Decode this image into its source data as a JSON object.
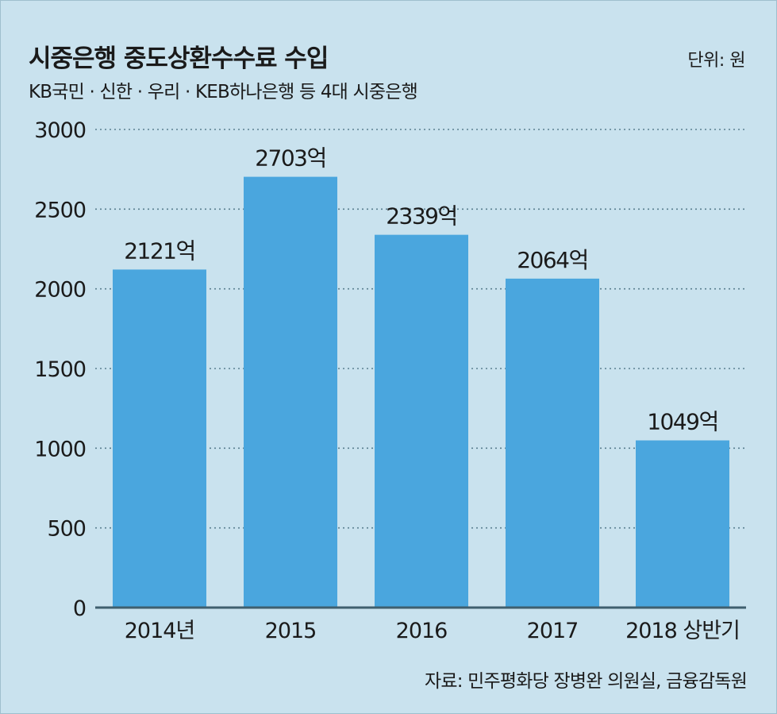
{
  "header": {
    "title": "시중은행 중도상환수수료 수입",
    "unit": "단위: 원",
    "subtitle": "KB국민 · 신한 · 우리  · KEB하나은행 등 4대 시중은행"
  },
  "footer": {
    "source": "자료: 민주평화당 장병완 의원실, 금융감독원"
  },
  "colors": {
    "bar": "#4aa6de",
    "background": "#c9e2ee",
    "grid": "#5a7f90",
    "axis": "#3f5f6e"
  },
  "chart_data": {
    "type": "bar",
    "title": "시중은행 중도상환수수료 수입",
    "subtitle": "KB국민 · 신한 · 우리  · KEB하나은행 등 4대 시중은행",
    "categories": [
      "2014년",
      "2015",
      "2016",
      "2017",
      "2018 상반기"
    ],
    "values": [
      2121,
      2703,
      2339,
      2064,
      1049
    ],
    "data_labels": [
      "2121억",
      "2703억",
      "2339억",
      "2064억",
      "1049억"
    ],
    "yticks": [
      "0",
      "500",
      "1000",
      "1500",
      "2000",
      "2500",
      "3000"
    ],
    "ylim": [
      0,
      3000
    ],
    "grid": true,
    "legend": "none"
  }
}
